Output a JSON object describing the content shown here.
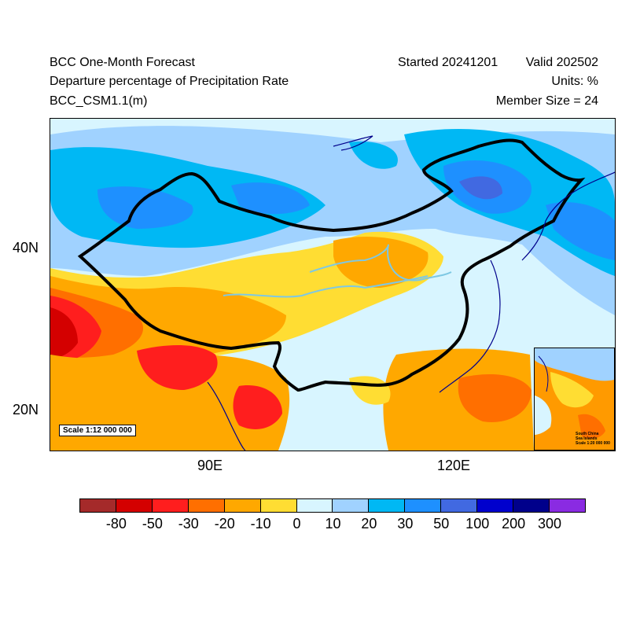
{
  "header": {
    "title": "BCC One-Month Forecast",
    "variable": "Departure percentage of Precipitation Rate",
    "model": "BCC_CSM1.1(m)",
    "started": "Started 20241201",
    "valid": "Valid 202502",
    "units": "Units: %",
    "member_size": "Member Size = 24"
  },
  "map": {
    "lat_labels": [
      "40N",
      "20N"
    ],
    "lon_labels": [
      "90E",
      "120E"
    ],
    "scale_label": "Scale 1:12 000 000",
    "inset_label": "South China\nSea Islands\nScale 1:20 000 000"
  },
  "colorbar": {
    "colors": [
      "#a52a2a",
      "#d40000",
      "#ff1e1e",
      "#ff6f00",
      "#ffa800",
      "#ffdd33",
      "#d8f5ff",
      "#a0d2ff",
      "#00b8f4",
      "#1e90ff",
      "#4169e1",
      "#0000cd",
      "#00008b",
      "#8a2be2"
    ],
    "tick_labels": [
      "-80",
      "-50",
      "-30",
      "-20",
      "-10",
      "0",
      "10",
      "20",
      "30",
      "50",
      "100",
      "200",
      "300"
    ]
  }
}
